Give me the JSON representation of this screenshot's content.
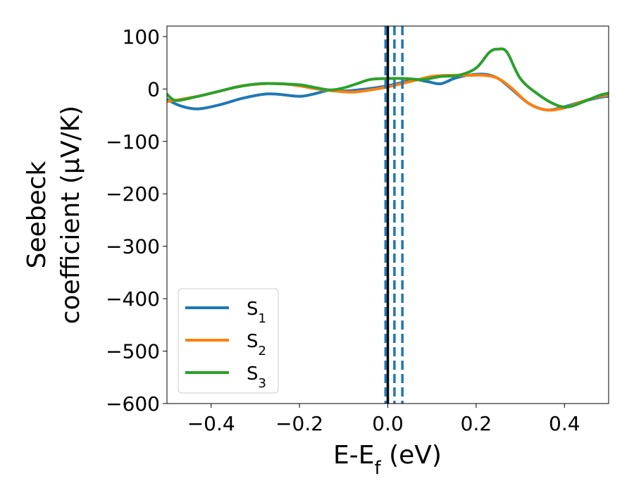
{
  "chart_data": {
    "type": "line",
    "xlabel": "E-E",
    "xlabel_sub": "f",
    "xlabel_unit": " (eV)",
    "ylabel_line1": "Seebeck",
    "ylabel_line2": "coefficient  (μV/K)",
    "xlim": [
      -0.5,
      0.5
    ],
    "ylim": [
      -600,
      120
    ],
    "xticks": [
      -0.4,
      -0.2,
      0.0,
      0.2,
      0.4
    ],
    "xtick_labels": [
      "−0.4",
      "−0.2",
      "0.0",
      "0.2",
      "0.4"
    ],
    "yticks": [
      100,
      0,
      -100,
      -200,
      -300,
      -400,
      -500,
      -600
    ],
    "ytick_labels": [
      "100",
      "0",
      "−100",
      "−200",
      "−300",
      "−400",
      "−500",
      "−600"
    ],
    "grid": false,
    "legend_position": "lower-left",
    "series": [
      {
        "name": "S",
        "sub": "1",
        "color": "#1f77b4",
        "points": [
          [
            -0.5,
            -20
          ],
          [
            -0.47,
            -32
          ],
          [
            -0.43,
            -38
          ],
          [
            -0.38,
            -30
          ],
          [
            -0.33,
            -18
          ],
          [
            -0.28,
            -10
          ],
          [
            -0.25,
            -10
          ],
          [
            -0.2,
            -14
          ],
          [
            -0.17,
            -10
          ],
          [
            -0.13,
            -2
          ],
          [
            -0.1,
            -4
          ],
          [
            -0.07,
            -2
          ],
          [
            -0.03,
            2
          ],
          [
            0.0,
            6
          ],
          [
            0.03,
            12
          ],
          [
            0.06,
            18
          ],
          [
            0.09,
            14
          ],
          [
            0.12,
            10
          ],
          [
            0.15,
            20
          ],
          [
            0.18,
            26
          ],
          [
            0.22,
            28
          ],
          [
            0.25,
            20
          ],
          [
            0.28,
            0
          ],
          [
            0.32,
            -28
          ],
          [
            0.36,
            -40
          ],
          [
            0.4,
            -34
          ],
          [
            0.44,
            -24
          ],
          [
            0.48,
            -16
          ],
          [
            0.5,
            -14
          ]
        ]
      },
      {
        "name": "S",
        "sub": "2",
        "color": "#ff7f0e",
        "points": [
          [
            -0.5,
            -24
          ],
          [
            -0.47,
            -20
          ],
          [
            -0.43,
            -14
          ],
          [
            -0.38,
            -4
          ],
          [
            -0.33,
            6
          ],
          [
            -0.28,
            10
          ],
          [
            -0.24,
            10
          ],
          [
            -0.2,
            6
          ],
          [
            -0.16,
            0
          ],
          [
            -0.12,
            -4
          ],
          [
            -0.08,
            -6
          ],
          [
            -0.04,
            -2
          ],
          [
            0.0,
            4
          ],
          [
            0.03,
            10
          ],
          [
            0.07,
            18
          ],
          [
            0.1,
            24
          ],
          [
            0.14,
            26
          ],
          [
            0.18,
            26
          ],
          [
            0.22,
            26
          ],
          [
            0.25,
            20
          ],
          [
            0.28,
            2
          ],
          [
            0.32,
            -28
          ],
          [
            0.36,
            -40
          ],
          [
            0.4,
            -36
          ],
          [
            0.44,
            -24
          ],
          [
            0.48,
            -14
          ],
          [
            0.5,
            -12
          ]
        ]
      },
      {
        "name": "S",
        "sub": "3",
        "color": "#2ca02c",
        "points": [
          [
            -0.5,
            -10
          ],
          [
            -0.48,
            -22
          ],
          [
            -0.44,
            -16
          ],
          [
            -0.39,
            -6
          ],
          [
            -0.34,
            4
          ],
          [
            -0.29,
            10
          ],
          [
            -0.25,
            10
          ],
          [
            -0.2,
            8
          ],
          [
            -0.16,
            2
          ],
          [
            -0.13,
            -2
          ],
          [
            -0.1,
            2
          ],
          [
            -0.07,
            10
          ],
          [
            -0.04,
            18
          ],
          [
            0.0,
            20
          ],
          [
            0.04,
            20
          ],
          [
            0.08,
            18
          ],
          [
            0.12,
            24
          ],
          [
            0.16,
            26
          ],
          [
            0.2,
            40
          ],
          [
            0.23,
            70
          ],
          [
            0.25,
            76
          ],
          [
            0.27,
            70
          ],
          [
            0.3,
            20
          ],
          [
            0.34,
            -10
          ],
          [
            0.38,
            -30
          ],
          [
            0.41,
            -34
          ],
          [
            0.45,
            -22
          ],
          [
            0.48,
            -12
          ],
          [
            0.5,
            -8
          ]
        ]
      }
    ],
    "vlines": [
      {
        "x": 0.0,
        "color": "#000000",
        "style": "solid"
      },
      {
        "x": -0.005,
        "color": "#1f77b4",
        "style": "dashed"
      },
      {
        "x": 0.015,
        "color": "#1f77b4",
        "style": "dashed"
      },
      {
        "x": 0.033,
        "color": "#1f77b4",
        "style": "dashed"
      }
    ]
  }
}
